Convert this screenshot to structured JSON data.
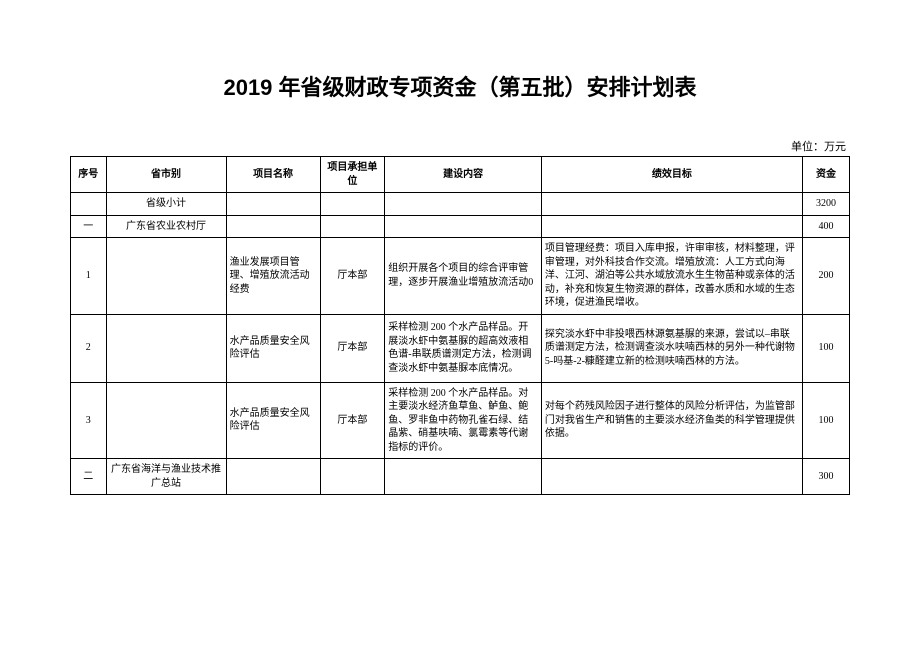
{
  "title": "2019 年省级财政专项资金（第五批）安排计划表",
  "unit_label": "单位：万元",
  "headers": {
    "seq": "序号",
    "dept": "省市别",
    "proj": "项目名称",
    "unit": "项目承担单位",
    "build": "建设内容",
    "goal": "绩效目标",
    "fund": "资金"
  },
  "rows": {
    "subtotal": {
      "dept": "省级小计",
      "fund": "3200"
    },
    "g1": {
      "seq": "一",
      "dept": "广东省农业农村厅",
      "fund": "400"
    },
    "r1": {
      "seq": "1",
      "proj": "渔业发展项目管理、增殖放流活动经费",
      "unit": "厅本部",
      "build": "组织开展各个项目的综合评审管理，逐步开展渔业增殖放流活动0",
      "goal": "项目管理经费：项目入库申报，许审审核，材料整理，评审管理，对外科技合作交流。增殖放流：人工方式向海洋、江河、湖泊等公共水域放流水生生物苗种或亲体的活动，补充和恢复生物资源的群体，改善水质和水域的生态环境，促进渔民增收。",
      "fund": "200"
    },
    "r2": {
      "seq": "2",
      "proj": "水产品质量安全风险评估",
      "unit": "厅本部",
      "build": "采样检测 200 个水产品样品。开展淡水虾中氨基脲的超高效液相色谱-串联质谱测定方法，检测调查淡水虾中氨基脲本底情况。",
      "goal": "探究淡水虾中非投喂西林源氨基脲的来源，尝试以–串联质谱测定方法，检测调查淡水呋喃西林的另外一种代谢物 5-吗基-2-糠醛建立新的检测呋喃西林的方法。",
      "fund": "100"
    },
    "r3": {
      "seq": "3",
      "proj": "水产品质量安全风险评估",
      "unit": "厅本部",
      "build": "采样检测 200 个水产品样品。对主要淡水经济鱼草鱼、鲈鱼、鲍鱼、罗非鱼中药物孔雀石绿、结晶紫、硝基呋喃、氯霉素等代谢指标的评价。",
      "goal": "对每个药残风险因子进行整体的风险分析评估，为监管部门对我省生产和销售的主要淡水经济鱼类的科学管理提供依据。",
      "fund": "100"
    },
    "g2": {
      "seq": "二",
      "dept": "广东省海洋与渔业技术推广总站",
      "fund": "300"
    }
  }
}
